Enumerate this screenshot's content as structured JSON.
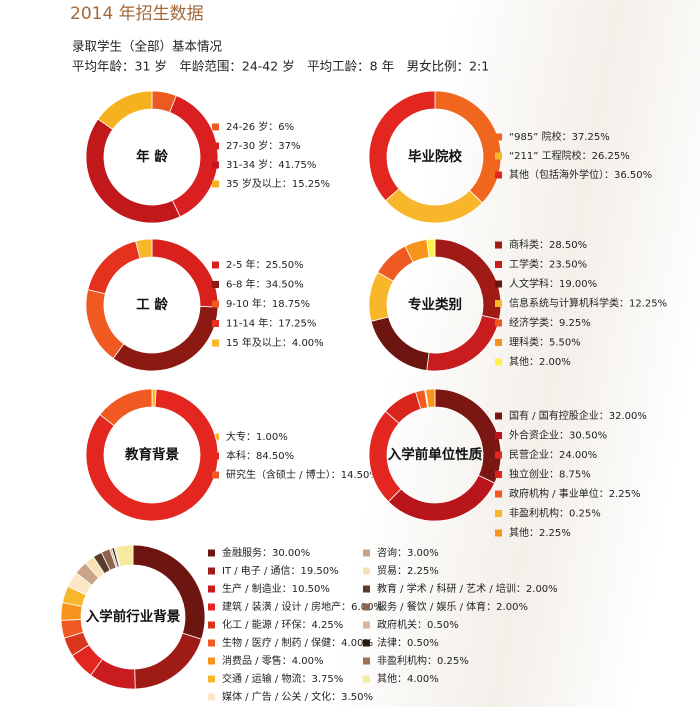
{
  "header": {
    "title": "2014 年招生数据",
    "subtitle": "录取学生（全部）基本情况",
    "stats": "平均年龄：31 岁　年龄范围：24-42 岁　平均工龄：8 年　男女比例：2:1"
  },
  "chart_data": [
    {
      "type": "pie",
      "title": "年 龄",
      "categories": [
        "24-26 岁：6%",
        "27-30 岁：37%",
        "31-34 岁：41.75%",
        "35 岁及以上：15.25%"
      ],
      "values": [
        6,
        37,
        41.75,
        15.25
      ],
      "colors": [
        "#ea5a21",
        "#d91f1f",
        "#c0181b",
        "#f6b21e"
      ]
    },
    {
      "type": "pie",
      "title": "毕业院校",
      "categories": [
        "“985” 院校：37.25%",
        "“211” 工程院校：26.25%",
        "其他（包括海外学位）：36.50%"
      ],
      "values": [
        37.25,
        26.25,
        36.5
      ],
      "colors": [
        "#f0661f",
        "#f8b62a",
        "#e3261f"
      ]
    },
    {
      "type": "pie",
      "title": "工 龄",
      "categories": [
        "2-5 年：25.50%",
        "6-8 年：34.50%",
        "9-10 年：18.75%",
        "11-14 年：17.25%",
        "15 年及以上：4.00%"
      ],
      "values": [
        25.5,
        34.5,
        18.75,
        17.25,
        4
      ],
      "colors": [
        "#d8201d",
        "#8c1a13",
        "#f05a22",
        "#e4321f",
        "#f8b62a"
      ]
    },
    {
      "type": "pie",
      "title": "专业类别",
      "categories": [
        "商科类：28.50%",
        "工学类：23.50%",
        "人文学科：19.00%",
        "信息系统与计算机科学类：12.25%",
        "经济学类：9.25%",
        "理科类：5.50%",
        "其他：2.00%"
      ],
      "values": [
        28.5,
        23.5,
        19,
        12.25,
        9.25,
        5.5,
        2
      ],
      "colors": [
        "#a01a16",
        "#c81c1e",
        "#6d1511",
        "#f8b62a",
        "#f05a22",
        "#f7941d",
        "#fff04a"
      ]
    },
    {
      "type": "pie",
      "title": "教育背景",
      "categories": [
        "大专：1.00%",
        "本科：84.50%",
        "研究生（含硕士 / 博士）：14.50%"
      ],
      "values": [
        1,
        84.5,
        14.5
      ],
      "colors": [
        "#f8b62a",
        "#e3261f",
        "#f05a22"
      ]
    },
    {
      "type": "pie",
      "title": "入学前单位性质",
      "categories": [
        "国有 / 国有控股企业：32.00%",
        "外合资企业：30.50%",
        "民营企业：24.00%",
        "独立创业：8.75%",
        "政府机构 / 事业单位：2.25%",
        "非盈利机构：0.25%",
        "其他：2.25%"
      ],
      "values": [
        32,
        30.5,
        24,
        8.75,
        2.25,
        0.25,
        2.25
      ],
      "colors": [
        "#7a1712",
        "#b8161b",
        "#e3261f",
        "#d9261c",
        "#f05a22",
        "#f8b62a",
        "#f7941d"
      ]
    },
    {
      "type": "pie",
      "title": "入学前行业背景",
      "categories": [
        "金融服务：30.00%",
        "IT / 电子 / 通信：19.50%",
        "生产 / 制造业：10.50%",
        "建筑 / 装潢 / 设计 / 房地产：6.00%",
        "化工 / 能源 / 环保：4.25%",
        "生物 / 医疗 / 制药 / 保健：4.00%",
        "消费品 / 零售：4.00%",
        "交通 / 运输 / 物流：3.75%",
        "媒体 / 广告 / 公关 / 文化：3.50%",
        "咨询：3.00%",
        "贸易：2.25%",
        "教育 / 学术 / 科研 / 艺术 / 培训：2.00%",
        "服务 / 餐饮 / 娱乐 / 体育：2.00%",
        "政府机关：0.50%",
        "法律：0.50%",
        "非盈利机构：0.25%",
        "其他：4.00%"
      ],
      "values": [
        30,
        19.5,
        10.5,
        6,
        4.25,
        4,
        4,
        3.75,
        3.5,
        3,
        2.25,
        2,
        2,
        0.5,
        0.5,
        0.25,
        4
      ],
      "colors": [
        "#6d1511",
        "#9e1b16",
        "#c81c1e",
        "#e3261f",
        "#d9341c",
        "#f05a22",
        "#f7941d",
        "#f8b62a",
        "#fde6c8",
        "#c9a489",
        "#f8e2b5",
        "#5a3a2a",
        "#8c6450",
        "#d9b59a",
        "#2a1a10",
        "#a07050",
        "#f5ea9e"
      ]
    }
  ]
}
